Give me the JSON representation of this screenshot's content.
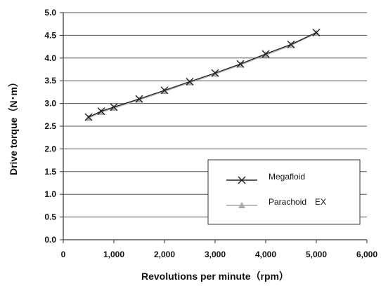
{
  "chart_data": {
    "type": "line",
    "xlabel": "Revolutions per minute（rpm）",
    "ylabel": "Drive torque（N･m）",
    "xlim": [
      0,
      6000
    ],
    "ylim": [
      0.0,
      5.0
    ],
    "x_ticks": [
      0,
      1000,
      2000,
      3000,
      4000,
      5000,
      6000
    ],
    "x_tick_labels": [
      "0",
      "1,000",
      "2,000",
      "3,000",
      "4,000",
      "5,000",
      "6,000"
    ],
    "y_ticks": [
      0.0,
      0.5,
      1.0,
      1.5,
      2.0,
      2.5,
      3.0,
      3.5,
      4.0,
      4.5,
      5.0
    ],
    "y_tick_labels": [
      "0.0",
      "0.5",
      "1.0",
      "1.5",
      "2.0",
      "2.5",
      "3.0",
      "3.5",
      "4.0",
      "4.5",
      "5.0"
    ],
    "grid": "horizontal",
    "legend_position": "bottom-right",
    "series": [
      {
        "name": "Megafloid",
        "marker": "x",
        "color": "#222222",
        "x": [
          500,
          750,
          1000,
          1500,
          2000,
          2500,
          3000,
          3500,
          4000,
          4500,
          5000
        ],
        "y": [
          2.7,
          2.83,
          2.92,
          3.1,
          3.29,
          3.48,
          3.67,
          3.87,
          4.09,
          4.3,
          4.56
        ]
      },
      {
        "name": "Parachoid　EX",
        "marker": "triangle",
        "color": "#aaaaaa",
        "x": [
          500,
          750,
          1000,
          1500,
          2000,
          2500,
          3000,
          3500,
          4000,
          4500,
          5000
        ],
        "y": [
          2.68,
          2.81,
          2.9,
          3.08,
          3.27,
          3.46,
          3.65,
          3.85,
          4.07,
          4.28,
          4.55
        ]
      }
    ]
  }
}
